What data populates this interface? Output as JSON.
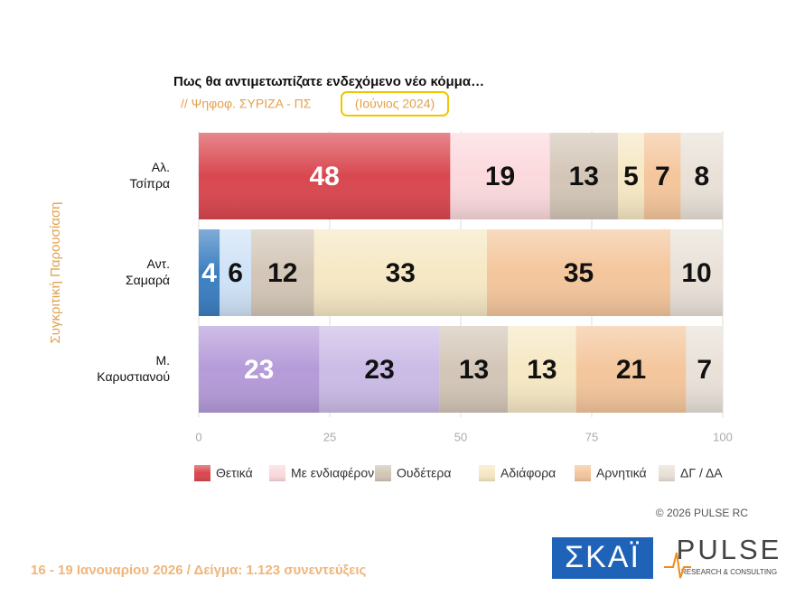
{
  "chart_data": {
    "type": "stacked-barh",
    "title": "Πως θα αντιμετωπίζατε ενδεχόμενο νέο κόμμα…",
    "subtitle": "// Ψηφοφ. ΣΥΡΙΖΑ - ΠΣ",
    "period": "(Ιούνιος 2024)",
    "y_label": "Συγκριτική Παρουσίαση",
    "categories": [
      "Αλ. Τσίπρα",
      "Αντ. Σαμαρά",
      "Μ. Καρυστιανού"
    ],
    "series": [
      {
        "name": "Θετικά",
        "color": "#d9474f",
        "colors": [
          "#d9474f",
          "#3b7fc1",
          "#b59bd9"
        ],
        "values": [
          48,
          4,
          23
        ]
      },
      {
        "name": "Με ενδιαφέρον",
        "color": "#fbd9dd",
        "colors": [
          "#fbd9dd",
          "#cfe2f7",
          "#cbbbe6"
        ],
        "values": [
          19,
          6,
          23
        ]
      },
      {
        "name": "Ουδέτερα",
        "color": "#d3c6b7",
        "values": [
          13,
          12,
          13
        ]
      },
      {
        "name": "Αδιάφορα",
        "color": "#f6e8c4",
        "values": [
          5,
          33,
          13
        ]
      },
      {
        "name": "Αρνητικά",
        "color": "#f4c69c",
        "values": [
          7,
          35,
          21
        ]
      },
      {
        "name": "ΔΓ / ΔΑ",
        "color": "#e9e1d8",
        "values": [
          8,
          10,
          7
        ]
      }
    ],
    "xlim": [
      0,
      100
    ],
    "xticks": [
      0,
      25,
      50,
      75,
      100
    ],
    "grid": true,
    "legend": "bottom"
  },
  "footer": {
    "fieldwork": "16 - 19 Ιανουαρίου 2026  /  Δείγμα:  1.123 συνεντεύξεις",
    "copyright": "© 2026 PULSE RC",
    "logo_skai": "ΣΚΑΪ",
    "logo_pulse": "PULSE",
    "logo_pulse_sub": "RESEARCH & CONSULTING"
  }
}
